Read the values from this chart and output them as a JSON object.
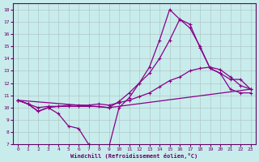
{
  "xlabel": "Windchill (Refroidissement éolien,°C)",
  "ylabel": "",
  "background_color": "#c8ecec",
  "grid_color": "#b0c8c8",
  "line_color": "#880088",
  "xlim": [
    -0.5,
    23.5
  ],
  "ylim": [
    7,
    18.5
  ],
  "yticks": [
    7,
    8,
    9,
    10,
    11,
    12,
    13,
    14,
    15,
    16,
    17,
    18
  ],
  "xticks": [
    0,
    1,
    2,
    3,
    4,
    5,
    6,
    7,
    8,
    9,
    10,
    11,
    12,
    13,
    14,
    15,
    16,
    17,
    18,
    19,
    20,
    21,
    22,
    23
  ],
  "lines": [
    {
      "x": [
        0,
        1,
        2,
        3,
        4,
        5,
        6,
        7,
        8,
        9,
        10,
        11,
        12,
        13,
        14,
        15,
        16,
        17,
        18,
        19,
        20,
        21,
        22,
        23
      ],
      "y": [
        10.6,
        10.3,
        9.7,
        10.0,
        9.5,
        8.5,
        8.3,
        7.0,
        6.9,
        6.8,
        10.0,
        10.8,
        12.0,
        13.3,
        15.5,
        18.0,
        17.2,
        16.5,
        15.0,
        13.2,
        12.8,
        12.3,
        12.3,
        11.5
      ]
    },
    {
      "x": [
        0,
        1,
        2,
        3,
        4,
        5,
        6,
        7,
        8,
        9,
        10,
        11,
        12,
        13,
        14,
        15,
        16,
        17,
        18,
        19,
        20,
        21,
        22,
        23
      ],
      "y": [
        10.6,
        10.3,
        9.7,
        10.0,
        10.1,
        10.1,
        10.1,
        10.1,
        10.1,
        10.0,
        10.5,
        11.2,
        12.0,
        12.8,
        14.0,
        15.5,
        17.2,
        16.8,
        14.9,
        13.2,
        12.8,
        11.5,
        11.2,
        11.2
      ]
    },
    {
      "x": [
        0,
        1,
        2,
        3,
        4,
        5,
        6,
        7,
        8,
        9,
        10,
        11,
        12,
        13,
        14,
        15,
        16,
        17,
        18,
        19,
        20,
        21,
        22,
        23
      ],
      "y": [
        10.6,
        10.3,
        10.0,
        10.1,
        10.1,
        10.2,
        10.2,
        10.2,
        10.3,
        10.2,
        10.4,
        10.6,
        10.9,
        11.2,
        11.7,
        12.2,
        12.5,
        13.0,
        13.2,
        13.3,
        13.1,
        12.5,
        11.8,
        11.5
      ]
    },
    {
      "x": [
        0,
        9,
        23
      ],
      "y": [
        10.6,
        10.0,
        11.5
      ]
    }
  ],
  "marker": "+",
  "markersize": 3.5,
  "linewidth": 0.9
}
